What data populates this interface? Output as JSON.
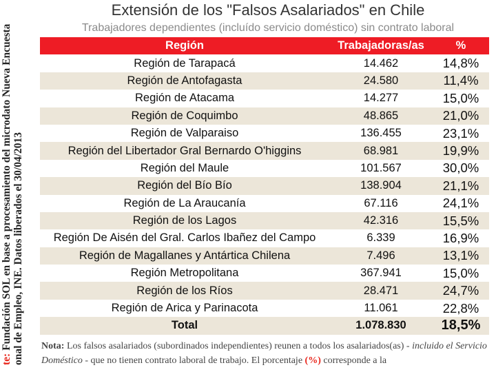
{
  "side_note": {
    "label": "te:",
    "line1": " Fundación SOL en base a procesamiento del microdato Nueva Encuesta",
    "line2": "onal de Empleo, INE. Datos liberados el 30/04/2013"
  },
  "chart_data": {
    "type": "table",
    "title": "Extensión de los \"Falsos Asalariados\" en Chile",
    "subtitle": "Trabajadores dependientes (incluído servicio doméstico) sin contrato laboral",
    "columns": [
      "Región",
      "Trabajadoras/as",
      "%"
    ],
    "rows": [
      {
        "region": "Región de Tarapacá",
        "trabajadores": "14.462",
        "pct": "14,8%"
      },
      {
        "region": "Región de Antofagasta",
        "trabajadores": "24.580",
        "pct": "11,4%"
      },
      {
        "region": "Región de Atacama",
        "trabajadores": "14.277",
        "pct": "15,0%"
      },
      {
        "region": "Región de Coquimbo",
        "trabajadores": "48.865",
        "pct": "21,0%"
      },
      {
        "region": "Región de Valparaiso",
        "trabajadores": "136.455",
        "pct": "23,1%"
      },
      {
        "region": "Región del Libertador Gral Bernardo O'higgins",
        "trabajadores": "68.981",
        "pct": "19,9%"
      },
      {
        "region": "Región del Maule",
        "trabajadores": "101.567",
        "pct": "30,0%"
      },
      {
        "region": "Región del Bío Bío",
        "trabajadores": "138.904",
        "pct": "21,1%"
      },
      {
        "region": "Región de La Araucanía",
        "trabajadores": "67.116",
        "pct": "24,1%"
      },
      {
        "region": "Región de los Lagos",
        "trabajadores": "42.316",
        "pct": "15,5%"
      },
      {
        "region": "Región De Aisén del Gral. Carlos Ibañez del Campo",
        "trabajadores": "6.339",
        "pct": "16,9%"
      },
      {
        "region": "Región de Magallanes y Antártica Chilena",
        "trabajadores": "7.496",
        "pct": "13,1%"
      },
      {
        "region": "Región Metropolitana",
        "trabajadores": "367.941",
        "pct": "15,0%"
      },
      {
        "region": "Región de los Ríos",
        "trabajadores": "28.471",
        "pct": "24,7%"
      },
      {
        "region": "Región de Arica y Parinacota",
        "trabajadores": "11.061",
        "pct": "22,8%"
      }
    ],
    "total": {
      "region": "Total",
      "trabajadores": "1.078.830",
      "pct": "18,5%"
    },
    "colors": {
      "header": "#ee1c25",
      "alt_row": "#ece6d9",
      "text": "#111111"
    }
  },
  "note": {
    "label": "Nota:",
    "text1": " Los falsos asalariados (subordinados independientes) reunen a todos los asalariados(as) - ",
    "italic": "incluido el Servicio Doméstico",
    "text2": " - que no tienen contrato laboral de trabajo. El porcentaje ",
    "pct_symbol": "(%)",
    "text3": " corresponde a la"
  }
}
